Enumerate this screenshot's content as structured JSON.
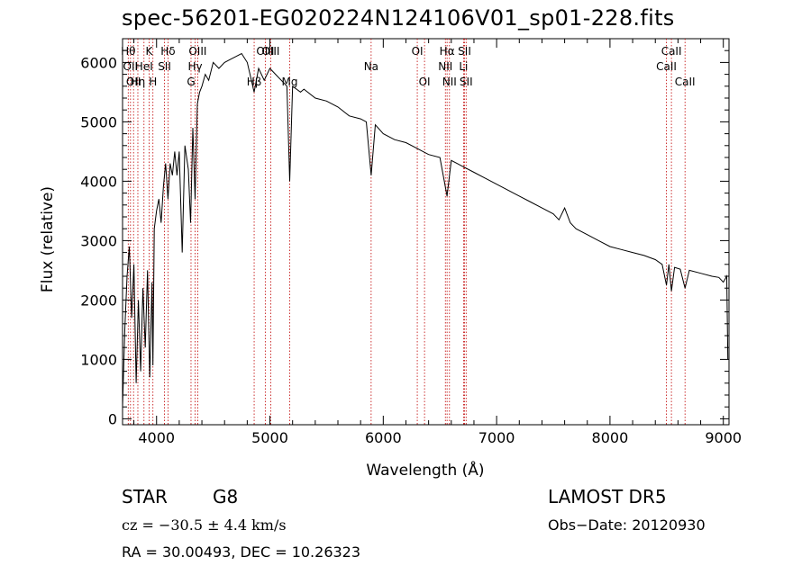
{
  "title": "spec-56201-EG020224N124106V01_sp01-228.fits",
  "info": {
    "object_class": "STAR",
    "subclass": "G8",
    "survey": "LAMOST DR5",
    "cz": "cz = −30.5 ± 4.4 km/s",
    "obs_date": "Obs−Date: 20120930",
    "radec": "RA =  30.00493, DEC =  10.26323"
  },
  "chart_data": {
    "type": "line",
    "xlabel": "Wavelength (Å)",
    "ylabel": "Flux (relative)",
    "xlim": [
      3700,
      9050
    ],
    "ylim": [
      -100,
      6400
    ],
    "xticks": [
      4000,
      5000,
      6000,
      7000,
      8000,
      9000
    ],
    "yticks": [
      0,
      1000,
      2000,
      3000,
      4000,
      5000,
      6000
    ],
    "grid": false,
    "series": [
      {
        "x": [
          3700,
          3720,
          3740,
          3760,
          3780,
          3800,
          3820,
          3840,
          3860,
          3880,
          3900,
          3920,
          3940,
          3960,
          3968,
          3980,
          4000,
          4020,
          4040,
          4060,
          4080,
          4101,
          4120,
          4140,
          4160,
          4180,
          4200,
          4226,
          4250,
          4280,
          4300,
          4320,
          4340,
          4360,
          4380,
          4400,
          4430,
          4460,
          4500,
          4550,
          4600,
          4650,
          4700,
          4750,
          4800,
          4861,
          4900,
          4950,
          5000,
          5050,
          5100,
          5150,
          5175,
          5200,
          5270,
          5300,
          5400,
          5500,
          5600,
          5700,
          5800,
          5850,
          5893,
          5930,
          6000,
          6100,
          6200,
          6300,
          6400,
          6500,
          6563,
          6600,
          6700,
          6800,
          6900,
          7000,
          7100,
          7200,
          7300,
          7400,
          7500,
          7550,
          7600,
          7650,
          7700,
          7800,
          7900,
          8000,
          8100,
          8200,
          8300,
          8400,
          8460,
          8498,
          8520,
          8542,
          8570,
          8620,
          8662,
          8700,
          8800,
          8900,
          8960,
          9000,
          9030,
          9040
        ],
        "y": [
          200,
          1500,
          2400,
          2900,
          1700,
          2600,
          600,
          2000,
          800,
          2200,
          1200,
          2500,
          700,
          2300,
          900,
          3200,
          3500,
          3700,
          3300,
          3900,
          4300,
          3700,
          4300,
          4100,
          4500,
          4100,
          4500,
          2800,
          4600,
          4200,
          3300,
          4900,
          3700,
          5300,
          5500,
          5600,
          5800,
          5700,
          6000,
          5900,
          6000,
          6050,
          6100,
          6150,
          6000,
          5500,
          5900,
          5700,
          5900,
          5800,
          5700,
          5600,
          4000,
          5600,
          5500,
          5550,
          5400,
          5350,
          5250,
          5100,
          5050,
          5000,
          4100,
          4950,
          4800,
          4700,
          4650,
          4550,
          4450,
          4400,
          3750,
          4350,
          4250,
          4150,
          4050,
          3950,
          3850,
          3750,
          3650,
          3550,
          3450,
          3350,
          3550,
          3300,
          3200,
          3100,
          3000,
          2900,
          2850,
          2800,
          2750,
          2680,
          2600,
          2250,
          2600,
          2150,
          2550,
          2520,
          2200,
          2500,
          2450,
          2400,
          2380,
          2300,
          2400,
          1000
        ]
      }
    ],
    "lines": [
      {
        "x": 3750,
        "label": "Hθ",
        "row": 0
      },
      {
        "x": 3770,
        "label": "OII",
        "row": 1
      },
      {
        "x": 3797,
        "label": "OII",
        "row": 2
      },
      {
        "x": 3835,
        "label": "Hη",
        "row": 2
      },
      {
        "x": 3889,
        "label": "HeI",
        "row": 1
      },
      {
        "x": 3934,
        "label": "K",
        "row": 0
      },
      {
        "x": 3968,
        "label": "H",
        "row": 2
      },
      {
        "x": 4070,
        "label": "SII",
        "row": 1
      },
      {
        "x": 4101,
        "label": "Hδ",
        "row": 0
      },
      {
        "x": 4304,
        "label": "G",
        "row": 2
      },
      {
        "x": 4340,
        "label": "Hγ",
        "row": 1
      },
      {
        "x": 4363,
        "label": "OIII",
        "row": 0
      },
      {
        "x": 4861,
        "label": "Hβ",
        "row": 2
      },
      {
        "x": 4959,
        "label": "OIII",
        "row": 0
      },
      {
        "x": 5007,
        "label": "OIII",
        "row": 0
      },
      {
        "x": 5175,
        "label": "Mg",
        "row": 2
      },
      {
        "x": 5893,
        "label": "Na",
        "row": 1
      },
      {
        "x": 6300,
        "label": "OI",
        "row": 0
      },
      {
        "x": 6364,
        "label": "OI",
        "row": 2
      },
      {
        "x": 6548,
        "label": "NII",
        "row": 1
      },
      {
        "x": 6563,
        "label": "Hα",
        "row": 0
      },
      {
        "x": 6584,
        "label": "NII",
        "row": 2
      },
      {
        "x": 6708,
        "label": "Li",
        "row": 1
      },
      {
        "x": 6717,
        "label": "SII",
        "row": 0
      },
      {
        "x": 6731,
        "label": "SII",
        "row": 2
      },
      {
        "x": 8498,
        "label": "CaII",
        "row": 1
      },
      {
        "x": 8542,
        "label": "CaII",
        "row": 0
      },
      {
        "x": 8662,
        "label": "CaII",
        "row": 2
      }
    ]
  }
}
